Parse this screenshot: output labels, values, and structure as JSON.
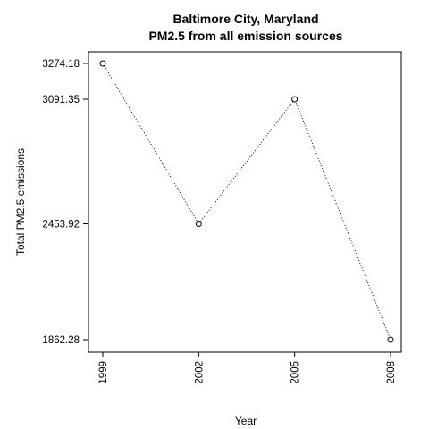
{
  "chart_data": {
    "type": "line",
    "title_line1": "Baltimore City, Maryland",
    "title_line2": "PM2.5 from all emission sources",
    "xlabel": "Year",
    "ylabel": "Total PM2.5 emissions",
    "x": [
      1999,
      2002,
      2005,
      2008
    ],
    "values": [
      3274.18,
      2453.92,
      3091.35,
      1862.28
    ],
    "x_ticks": [
      "1999",
      "2002",
      "2005",
      "2008"
    ],
    "y_ticks": [
      "3274.18",
      "3091.35",
      "2453.92",
      "1862.28"
    ],
    "xlim": [
      1999,
      2008
    ],
    "ylim": [
      1862.28,
      3274.18
    ],
    "line_style": "dotted",
    "marker": "open-circle",
    "grid": false
  }
}
